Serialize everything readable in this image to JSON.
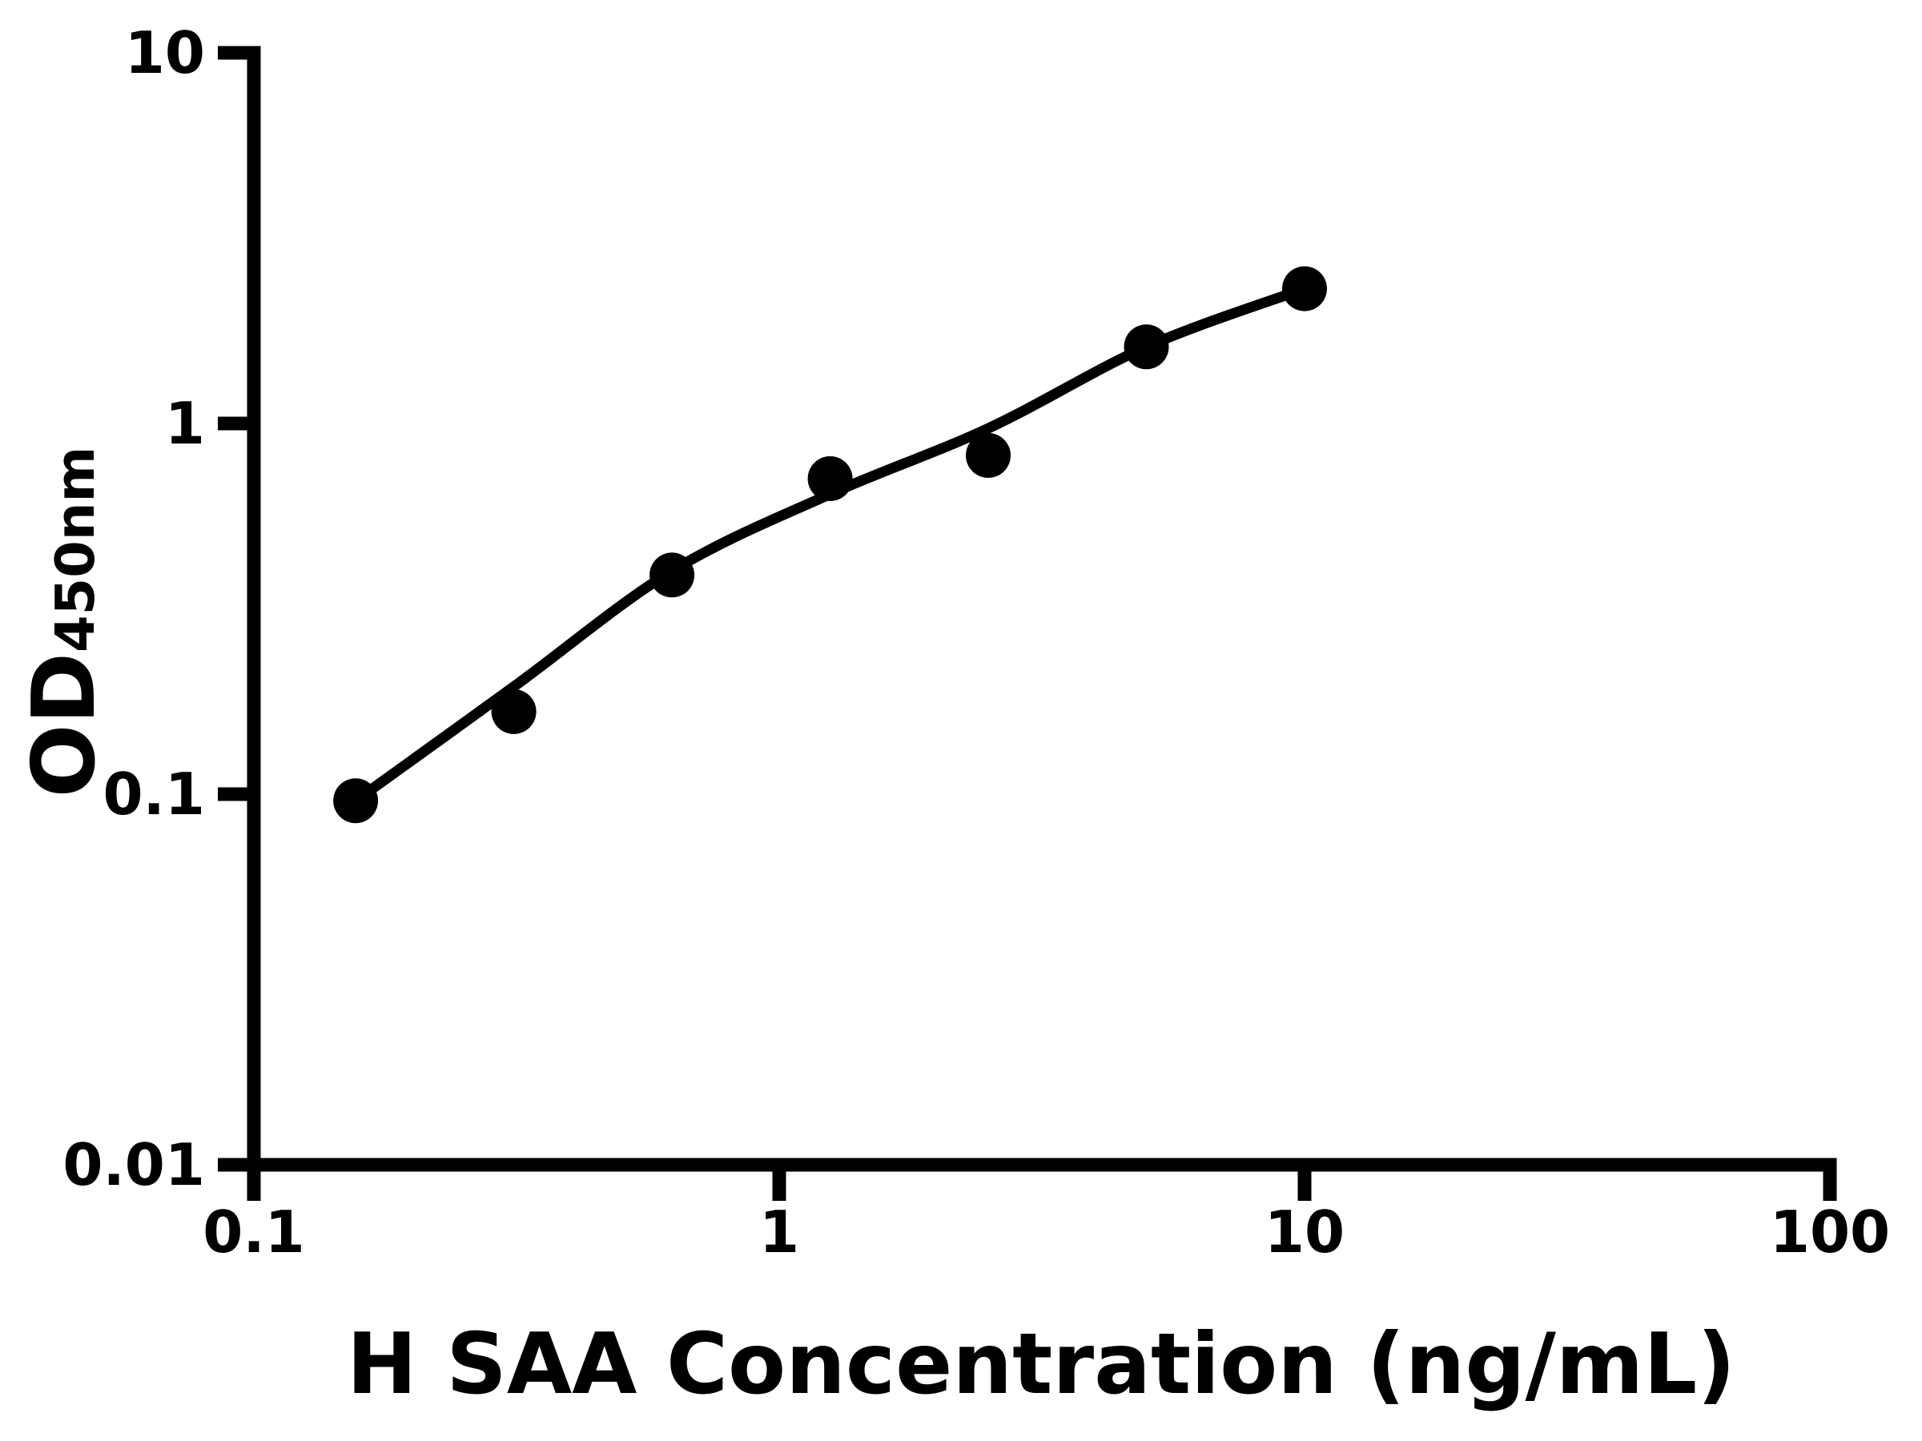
{
  "chart_data": {
    "type": "scatter",
    "xlabel": "H SAA Concentration (ng/mL)",
    "ylabel_main": "OD",
    "ylabel_sub": "450nm",
    "x_scale": "log",
    "y_scale": "log",
    "xlim": [
      0.1,
      100
    ],
    "ylim": [
      0.01,
      10
    ],
    "x_ticks": [
      0.1,
      1,
      10,
      100
    ],
    "x_tick_labels": [
      "0.1",
      "1",
      "10",
      "100"
    ],
    "y_ticks": [
      10,
      1,
      0.1,
      0.01
    ],
    "y_tick_labels": [
      "10",
      "1",
      "0.1",
      "0.01"
    ],
    "grid": false,
    "legend": null,
    "series": [
      {
        "name": "standard-points",
        "type": "scatter",
        "x": [
          0.15625,
          0.3125,
          0.625,
          1.25,
          2.5,
          5,
          10
        ],
        "y": [
          0.096,
          0.167,
          0.39,
          0.71,
          0.82,
          1.61,
          2.31
        ]
      },
      {
        "name": "fit-curve",
        "type": "line",
        "x": [
          0.15625,
          0.3125,
          0.625,
          1.25,
          2.5,
          5,
          10
        ],
        "y": [
          0.096,
          0.195,
          0.4,
          0.645,
          0.97,
          1.61,
          2.31
        ]
      }
    ],
    "colors": {
      "axis": "#000000",
      "marker": "#000000",
      "line": "#000000",
      "background": "#ffffff"
    }
  }
}
